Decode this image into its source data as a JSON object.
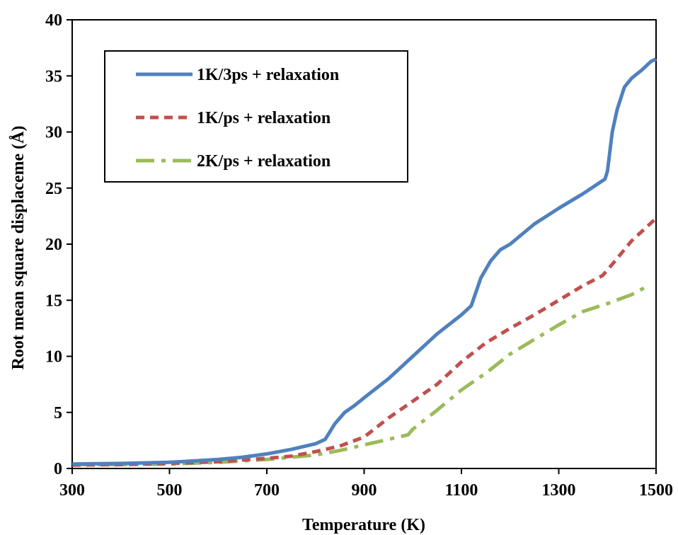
{
  "chart_data": {
    "type": "line",
    "title": "",
    "xlabel": "Temperature (K)",
    "ylabel": "Root mean square displaceme (Å)",
    "xlim": [
      300,
      1500
    ],
    "ylim": [
      0,
      40
    ],
    "x_ticks": [
      300,
      500,
      700,
      900,
      1100,
      1300,
      1500
    ],
    "y_ticks": [
      0,
      5,
      10,
      15,
      20,
      25,
      30,
      35,
      40
    ],
    "grid": false,
    "legend": "top-left",
    "series": [
      {
        "name": "1K/3ps + relaxation",
        "color": "#4f81bd",
        "dash": "solid",
        "points": [
          [
            300,
            0.4
          ],
          [
            400,
            0.45
          ],
          [
            500,
            0.55
          ],
          [
            600,
            0.8
          ],
          [
            650,
            1.0
          ],
          [
            700,
            1.3
          ],
          [
            750,
            1.7
          ],
          [
            800,
            2.2
          ],
          [
            820,
            2.6
          ],
          [
            840,
            4.0
          ],
          [
            860,
            5.0
          ],
          [
            880,
            5.6
          ],
          [
            900,
            6.3
          ],
          [
            950,
            8.0
          ],
          [
            1000,
            10.0
          ],
          [
            1050,
            12.0
          ],
          [
            1100,
            13.7
          ],
          [
            1120,
            14.5
          ],
          [
            1140,
            17.0
          ],
          [
            1160,
            18.5
          ],
          [
            1180,
            19.5
          ],
          [
            1200,
            20.0
          ],
          [
            1250,
            21.8
          ],
          [
            1300,
            23.2
          ],
          [
            1350,
            24.5
          ],
          [
            1395,
            25.8
          ],
          [
            1400,
            26.5
          ],
          [
            1410,
            30.0
          ],
          [
            1420,
            32.0
          ],
          [
            1435,
            34.0
          ],
          [
            1450,
            34.8
          ],
          [
            1470,
            35.5
          ],
          [
            1490,
            36.3
          ],
          [
            1500,
            36.5
          ]
        ]
      },
      {
        "name": "1K/ps + relaxation",
        "color": "#c0504d",
        "dash": "dash",
        "points": [
          [
            300,
            0.3
          ],
          [
            400,
            0.35
          ],
          [
            500,
            0.45
          ],
          [
            600,
            0.6
          ],
          [
            650,
            0.75
          ],
          [
            700,
            0.9
          ],
          [
            750,
            1.1
          ],
          [
            800,
            1.5
          ],
          [
            850,
            2.0
          ],
          [
            900,
            2.8
          ],
          [
            950,
            4.5
          ],
          [
            1000,
            6.0
          ],
          [
            1050,
            7.5
          ],
          [
            1100,
            9.5
          ],
          [
            1150,
            11.2
          ],
          [
            1200,
            12.5
          ],
          [
            1250,
            13.7
          ],
          [
            1300,
            15.0
          ],
          [
            1350,
            16.3
          ],
          [
            1390,
            17.2
          ],
          [
            1410,
            18.2
          ],
          [
            1450,
            20.3
          ],
          [
            1500,
            22.3
          ]
        ]
      },
      {
        "name": "2K/ps + relaxation",
        "color": "#9bbb59",
        "dash": "dashdot",
        "points": [
          [
            300,
            0.35
          ],
          [
            400,
            0.35
          ],
          [
            500,
            0.4
          ],
          [
            600,
            0.55
          ],
          [
            700,
            0.8
          ],
          [
            750,
            1.0
          ],
          [
            800,
            1.2
          ],
          [
            850,
            1.6
          ],
          [
            900,
            2.1
          ],
          [
            950,
            2.6
          ],
          [
            990,
            3.0
          ],
          [
            1000,
            3.5
          ],
          [
            1050,
            5.2
          ],
          [
            1100,
            7.0
          ],
          [
            1150,
            8.5
          ],
          [
            1200,
            10.2
          ],
          [
            1250,
            11.5
          ],
          [
            1300,
            12.8
          ],
          [
            1350,
            14.0
          ],
          [
            1400,
            14.7
          ],
          [
            1450,
            15.5
          ],
          [
            1480,
            16.2
          ]
        ]
      }
    ]
  }
}
